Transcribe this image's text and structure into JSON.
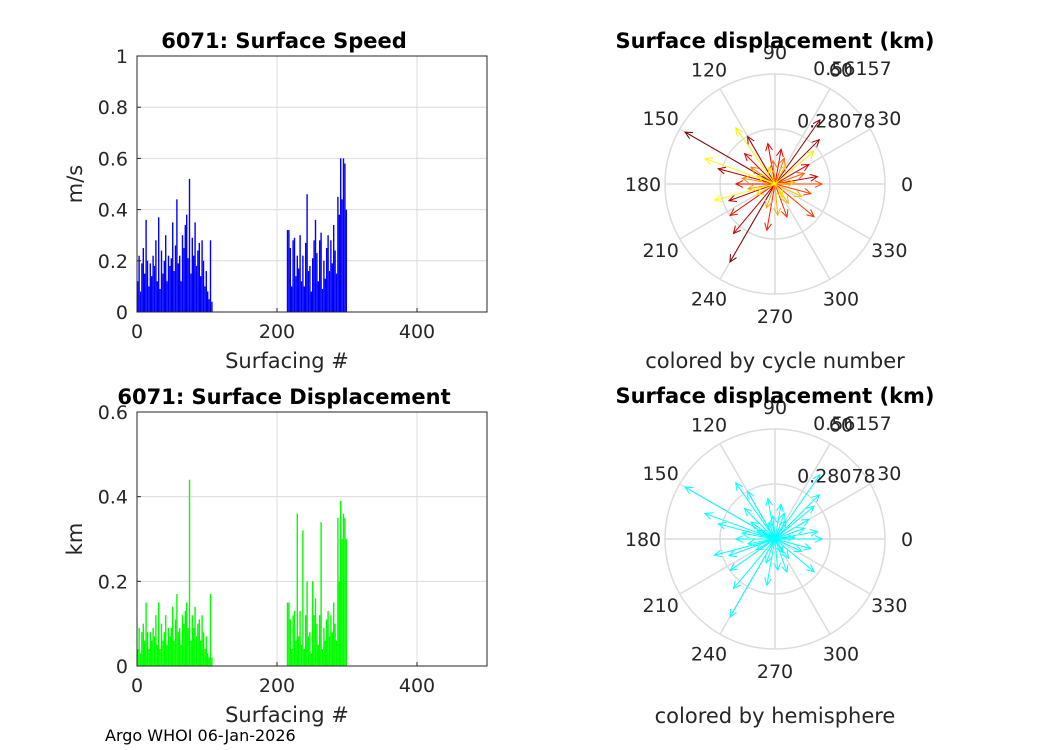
{
  "footer": "Argo WHOI 06-Jan-2026",
  "colors": {
    "speed": "#0000ff",
    "displacement": "#00ff00",
    "hemisphere": "#00ffff",
    "grid": "#dcdcdc",
    "axis": "#262626"
  },
  "chart_data": [
    {
      "id": "speed",
      "type": "bar",
      "title": "6071: Surface Speed",
      "xlabel": "Surfacing #",
      "ylabel": "m/s",
      "xlim": [
        0,
        500
      ],
      "ylim": [
        0,
        1
      ],
      "xticks": [
        0,
        200,
        400
      ],
      "xtick_labels": [
        "0",
        "200",
        "400"
      ],
      "yticks": [
        0,
        0.2,
        0.4,
        0.6,
        0.8,
        1
      ],
      "ytick_labels": [
        "0",
        "0.2",
        "0.4",
        "0.6",
        "0.8",
        "1"
      ],
      "series": [
        {
          "name": "speed",
          "color": "#0000ff",
          "x": [
            1,
            3,
            5,
            7,
            9,
            11,
            13,
            15,
            17,
            19,
            21,
            23,
            25,
            27,
            29,
            31,
            33,
            35,
            37,
            39,
            41,
            43,
            45,
            47,
            49,
            51,
            53,
            55,
            57,
            59,
            61,
            63,
            65,
            67,
            69,
            71,
            73,
            75,
            77,
            79,
            81,
            83,
            85,
            87,
            89,
            91,
            93,
            95,
            97,
            99,
            101,
            103,
            105,
            107,
            215,
            217,
            219,
            221,
            223,
            225,
            227,
            229,
            231,
            233,
            235,
            237,
            239,
            241,
            243,
            245,
            247,
            249,
            251,
            253,
            255,
            257,
            259,
            261,
            263,
            265,
            267,
            269,
            271,
            273,
            275,
            277,
            279,
            281,
            283,
            285,
            287,
            289,
            291,
            293,
            295,
            297,
            299
          ],
          "values": [
            0.12,
            0.22,
            0.08,
            0.19,
            0.25,
            0.15,
            0.36,
            0.2,
            0.1,
            0.19,
            0.14,
            0.22,
            0.18,
            0.28,
            0.12,
            0.37,
            0.09,
            0.24,
            0.15,
            0.2,
            0.3,
            0.12,
            0.22,
            0.18,
            0.21,
            0.35,
            0.16,
            0.26,
            0.44,
            0.19,
            0.22,
            0.12,
            0.3,
            0.25,
            0.34,
            0.38,
            0.21,
            0.52,
            0.15,
            0.29,
            0.22,
            0.35,
            0.18,
            0.24,
            0.27,
            0.14,
            0.28,
            0.2,
            0.1,
            0.16,
            0.08,
            0.05,
            0.28,
            0.04,
            0.32,
            0.32,
            0.25,
            0.1,
            0.28,
            0.29,
            0.14,
            0.22,
            0.17,
            0.3,
            0.12,
            0.22,
            0.1,
            0.27,
            0.46,
            0.16,
            0.18,
            0.08,
            0.21,
            0.28,
            0.36,
            0.23,
            0.12,
            0.28,
            0.31,
            0.09,
            0.2,
            0.13,
            0.25,
            0.3,
            0.16,
            0.28,
            0.19,
            0.34,
            0.24,
            0.15,
            0.45,
            0.38,
            0.6,
            0.44,
            0.6,
            0.58,
            0.4
          ]
        }
      ]
    },
    {
      "id": "displacement",
      "type": "bar",
      "title": "6071: Surface Displacement",
      "xlabel": "Surfacing #",
      "ylabel": "km",
      "xlim": [
        0,
        500
      ],
      "ylim": [
        0,
        0.6
      ],
      "xticks": [
        0,
        200,
        400
      ],
      "xtick_labels": [
        "0",
        "200",
        "400"
      ],
      "yticks": [
        0,
        0.2,
        0.4,
        0.6
      ],
      "ytick_labels": [
        "0",
        "0.2",
        "0.4",
        "0.6"
      ],
      "series": [
        {
          "name": "displacement",
          "color": "#00ff00",
          "x": [
            1,
            3,
            5,
            7,
            9,
            11,
            13,
            15,
            17,
            19,
            21,
            23,
            25,
            27,
            29,
            31,
            33,
            35,
            37,
            39,
            41,
            43,
            45,
            47,
            49,
            51,
            53,
            55,
            57,
            59,
            61,
            63,
            65,
            67,
            69,
            71,
            73,
            75,
            77,
            79,
            81,
            83,
            85,
            87,
            89,
            91,
            93,
            95,
            97,
            99,
            101,
            103,
            105,
            107,
            215,
            217,
            219,
            221,
            223,
            225,
            227,
            229,
            231,
            233,
            235,
            237,
            239,
            241,
            243,
            245,
            247,
            249,
            251,
            253,
            255,
            257,
            259,
            261,
            263,
            265,
            267,
            269,
            271,
            273,
            275,
            277,
            279,
            281,
            283,
            285,
            287,
            289,
            291,
            293,
            295,
            297,
            299
          ],
          "values": [
            0.04,
            0.09,
            0.03,
            0.08,
            0.1,
            0.06,
            0.15,
            0.08,
            0.04,
            0.08,
            0.06,
            0.09,
            0.07,
            0.12,
            0.05,
            0.15,
            0.04,
            0.1,
            0.06,
            0.08,
            0.12,
            0.05,
            0.09,
            0.07,
            0.09,
            0.14,
            0.06,
            0.11,
            0.17,
            0.08,
            0.09,
            0.05,
            0.12,
            0.1,
            0.13,
            0.15,
            0.09,
            0.44,
            0.06,
            0.12,
            0.09,
            0.14,
            0.07,
            0.1,
            0.11,
            0.06,
            0.12,
            0.08,
            0.04,
            0.07,
            0.03,
            0.02,
            0.17,
            0.02,
            0.15,
            0.15,
            0.11,
            0.04,
            0.12,
            0.13,
            0.06,
            0.36,
            0.07,
            0.13,
            0.05,
            0.32,
            0.04,
            0.12,
            0.2,
            0.07,
            0.08,
            0.03,
            0.2,
            0.12,
            0.16,
            0.1,
            0.05,
            0.12,
            0.34,
            0.04,
            0.09,
            0.06,
            0.11,
            0.13,
            0.07,
            0.12,
            0.08,
            0.15,
            0.1,
            0.06,
            0.35,
            0.2,
            0.39,
            0.3,
            0.36,
            0.35,
            0.3
          ]
        }
      ]
    },
    {
      "id": "polar-cycle",
      "type": "polar-quiver",
      "title": "Surface displacement (km)",
      "caption": "colored by cycle number",
      "rmax": 0.56157,
      "rings": [
        0.28078,
        0.56157
      ],
      "ring_labels": [
        "0.28078",
        "0.56157"
      ],
      "angle_labels": [
        "0",
        "30",
        "60",
        "90",
        "120",
        "150",
        "180",
        "210",
        "240",
        "270",
        "300",
        "330"
      ],
      "colormap": [
        "#800000",
        "#ff0000",
        "#ffa500",
        "#ffff00"
      ],
      "vectors": [
        {
          "angle": 150,
          "r": 0.53
        },
        {
          "angle": 240,
          "r": 0.46
        },
        {
          "angle": 55,
          "r": 0.4
        },
        {
          "angle": 45,
          "r": 0.32
        },
        {
          "angle": 120,
          "r": 0.28
        },
        {
          "angle": 165,
          "r": 0.3
        },
        {
          "angle": 200,
          "r": 0.25
        },
        {
          "angle": 230,
          "r": 0.33
        },
        {
          "angle": 10,
          "r": 0.22
        },
        {
          "angle": 30,
          "r": 0.2
        },
        {
          "angle": 80,
          "r": 0.18
        },
        {
          "angle": 100,
          "r": 0.21
        },
        {
          "angle": 135,
          "r": 0.22
        },
        {
          "angle": 180,
          "r": 0.2
        },
        {
          "angle": 215,
          "r": 0.28
        },
        {
          "angle": 260,
          "r": 0.24
        },
        {
          "angle": 290,
          "r": 0.18
        },
        {
          "angle": 320,
          "r": 0.26
        },
        {
          "angle": 345,
          "r": 0.19
        },
        {
          "angle": 0,
          "r": 0.24
        },
        {
          "angle": 20,
          "r": 0.16
        },
        {
          "angle": 70,
          "r": 0.14
        },
        {
          "angle": 95,
          "r": 0.12
        },
        {
          "angle": 145,
          "r": 0.15
        },
        {
          "angle": 170,
          "r": 0.17
        },
        {
          "angle": 190,
          "r": 0.14
        },
        {
          "angle": 250,
          "r": 0.13
        },
        {
          "angle": 275,
          "r": 0.16
        },
        {
          "angle": 305,
          "r": 0.12
        },
        {
          "angle": 335,
          "r": 0.15
        },
        {
          "angle": 5,
          "r": 0.1
        },
        {
          "angle": 60,
          "r": 0.11
        },
        {
          "angle": 110,
          "r": 0.09
        },
        {
          "angle": 155,
          "r": 0.1
        },
        {
          "angle": 210,
          "r": 0.11
        },
        {
          "angle": 300,
          "r": 0.08
        },
        {
          "angle": 40,
          "r": 0.26
        },
        {
          "angle": 125,
          "r": 0.35
        },
        {
          "angle": 160,
          "r": 0.38
        },
        {
          "angle": 195,
          "r": 0.32
        }
      ]
    },
    {
      "id": "polar-hemisphere",
      "type": "polar-quiver",
      "title": "Surface displacement (km)",
      "caption": "colored by hemisphere",
      "rmax": 0.56157,
      "rings": [
        0.28078,
        0.56157
      ],
      "ring_labels": [
        "0.28078",
        "0.56157"
      ],
      "angle_labels": [
        "0",
        "30",
        "60",
        "90",
        "120",
        "150",
        "180",
        "210",
        "240",
        "270",
        "300",
        "330"
      ],
      "color": "#00ffff",
      "vectors": [
        {
          "angle": 150,
          "r": 0.53
        },
        {
          "angle": 240,
          "r": 0.46
        },
        {
          "angle": 55,
          "r": 0.4
        },
        {
          "angle": 45,
          "r": 0.32
        },
        {
          "angle": 120,
          "r": 0.28
        },
        {
          "angle": 165,
          "r": 0.3
        },
        {
          "angle": 200,
          "r": 0.25
        },
        {
          "angle": 230,
          "r": 0.33
        },
        {
          "angle": 10,
          "r": 0.22
        },
        {
          "angle": 30,
          "r": 0.2
        },
        {
          "angle": 80,
          "r": 0.18
        },
        {
          "angle": 100,
          "r": 0.21
        },
        {
          "angle": 135,
          "r": 0.22
        },
        {
          "angle": 180,
          "r": 0.2
        },
        {
          "angle": 215,
          "r": 0.28
        },
        {
          "angle": 260,
          "r": 0.24
        },
        {
          "angle": 290,
          "r": 0.18
        },
        {
          "angle": 320,
          "r": 0.26
        },
        {
          "angle": 345,
          "r": 0.19
        },
        {
          "angle": 0,
          "r": 0.24
        },
        {
          "angle": 20,
          "r": 0.16
        },
        {
          "angle": 70,
          "r": 0.14
        },
        {
          "angle": 95,
          "r": 0.12
        },
        {
          "angle": 145,
          "r": 0.15
        },
        {
          "angle": 170,
          "r": 0.17
        },
        {
          "angle": 190,
          "r": 0.14
        },
        {
          "angle": 250,
          "r": 0.13
        },
        {
          "angle": 275,
          "r": 0.16
        },
        {
          "angle": 305,
          "r": 0.12
        },
        {
          "angle": 335,
          "r": 0.15
        },
        {
          "angle": 5,
          "r": 0.1
        },
        {
          "angle": 60,
          "r": 0.11
        },
        {
          "angle": 110,
          "r": 0.09
        },
        {
          "angle": 155,
          "r": 0.1
        },
        {
          "angle": 210,
          "r": 0.11
        },
        {
          "angle": 300,
          "r": 0.08
        },
        {
          "angle": 40,
          "r": 0.26
        },
        {
          "angle": 125,
          "r": 0.35
        },
        {
          "angle": 160,
          "r": 0.38
        },
        {
          "angle": 195,
          "r": 0.32
        }
      ]
    }
  ]
}
